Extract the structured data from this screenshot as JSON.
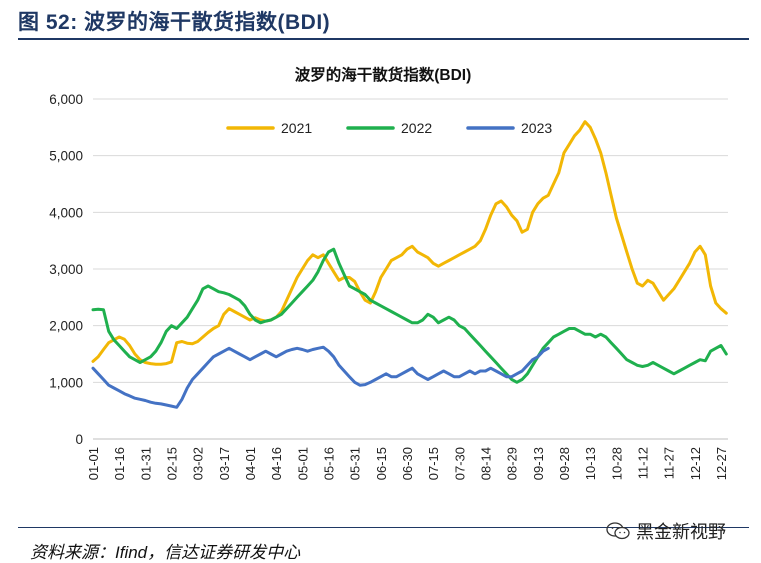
{
  "figure": {
    "title": "图 52:  波罗的海干散货指数(BDI)",
    "source": "资料来源：Ifind，信达证券研发中心",
    "watermark": "黑金新视野",
    "watermark_icon": "wechat-icon"
  },
  "chart_data": {
    "type": "line",
    "title": "波罗的海干散货指数(BDI)",
    "xlabel": "",
    "ylabel": "",
    "ylim": [
      0,
      6000
    ],
    "yticks": [
      "0",
      "1,000",
      "2,000",
      "3,000",
      "4,000",
      "5,000",
      "6,000"
    ],
    "ytick_values": [
      0,
      1000,
      2000,
      3000,
      4000,
      5000,
      6000
    ],
    "xticks": [
      "01-01",
      "01-16",
      "01-31",
      "02-15",
      "03-02",
      "03-17",
      "04-01",
      "04-16",
      "05-01",
      "05-16",
      "05-31",
      "06-15",
      "06-30",
      "07-15",
      "07-30",
      "08-14",
      "08-29",
      "09-13",
      "09-28",
      "10-13",
      "10-28",
      "11-12",
      "11-27",
      "12-12",
      "12-27"
    ],
    "xtick_days": [
      1,
      16,
      31,
      46,
      61,
      76,
      91,
      106,
      121,
      136,
      151,
      166,
      181,
      196,
      211,
      226,
      241,
      256,
      271,
      286,
      301,
      316,
      331,
      346,
      361
    ],
    "x_unit": "day of year",
    "xlim": [
      1,
      365
    ],
    "grid": true,
    "legend": "top-center",
    "series": [
      {
        "name": "2021",
        "color": "#f2b705",
        "x": [
          1,
          4,
          7,
          10,
          13,
          16,
          19,
          22,
          25,
          28,
          31,
          34,
          37,
          40,
          43,
          46,
          49,
          52,
          55,
          58,
          61,
          64,
          67,
          70,
          73,
          76,
          79,
          82,
          85,
          88,
          91,
          94,
          97,
          100,
          103,
          106,
          109,
          112,
          115,
          118,
          121,
          124,
          127,
          130,
          133,
          136,
          139,
          142,
          145,
          148,
          151,
          154,
          157,
          160,
          163,
          166,
          169,
          172,
          175,
          178,
          181,
          184,
          187,
          190,
          193,
          196,
          199,
          202,
          205,
          208,
          211,
          214,
          217,
          220,
          223,
          226,
          229,
          232,
          235,
          238,
          241,
          244,
          247,
          250,
          253,
          256,
          259,
          262,
          265,
          268,
          271,
          274,
          277,
          280,
          283,
          286,
          289,
          292,
          295,
          298,
          301,
          304,
          307,
          310,
          313,
          316,
          319,
          322,
          325,
          328,
          331,
          334,
          337,
          340,
          343,
          346,
          349,
          352,
          355,
          358,
          361,
          364
        ],
        "values": [
          1370,
          1450,
          1580,
          1700,
          1750,
          1800,
          1760,
          1650,
          1500,
          1400,
          1350,
          1330,
          1320,
          1320,
          1330,
          1360,
          1700,
          1720,
          1690,
          1680,
          1720,
          1800,
          1880,
          1950,
          2000,
          2200,
          2300,
          2250,
          2200,
          2150,
          2100,
          2140,
          2100,
          2080,
          2100,
          2150,
          2250,
          2450,
          2650,
          2850,
          3000,
          3150,
          3250,
          3200,
          3250,
          3100,
          2950,
          2800,
          2850,
          2850,
          2780,
          2600,
          2450,
          2400,
          2600,
          2850,
          3000,
          3150,
          3200,
          3250,
          3350,
          3400,
          3300,
          3250,
          3200,
          3100,
          3050,
          3100,
          3150,
          3200,
          3250,
          3300,
          3350,
          3400,
          3500,
          3700,
          3950,
          4150,
          4200,
          4100,
          3950,
          3850,
          3650,
          3700,
          4000,
          4150,
          4250,
          4300,
          4500,
          4700,
          5050,
          5200,
          5350,
          5450,
          5600,
          5500,
          5300,
          5050,
          4700,
          4300,
          3900,
          3600,
          3300,
          3000,
          2750,
          2700,
          2800,
          2750,
          2600,
          2450,
          2550,
          2650,
          2800,
          2950,
          3100,
          3300,
          3400,
          3250,
          2700,
          2400,
          2300,
          2220
        ]
      },
      {
        "name": "2022",
        "color": "#1fb04e",
        "x": [
          1,
          4,
          7,
          10,
          13,
          16,
          19,
          22,
          25,
          28,
          31,
          34,
          37,
          40,
          43,
          46,
          49,
          52,
          55,
          58,
          61,
          64,
          67,
          70,
          73,
          76,
          79,
          82,
          85,
          88,
          91,
          94,
          97,
          100,
          103,
          106,
          109,
          112,
          115,
          118,
          121,
          124,
          127,
          130,
          133,
          136,
          139,
          142,
          145,
          148,
          151,
          154,
          157,
          160,
          163,
          166,
          169,
          172,
          175,
          178,
          181,
          184,
          187,
          190,
          193,
          196,
          199,
          202,
          205,
          208,
          211,
          214,
          217,
          220,
          223,
          226,
          229,
          232,
          235,
          238,
          241,
          244,
          247,
          250,
          253,
          256,
          259,
          262,
          265,
          268,
          271,
          274,
          277,
          280,
          283,
          286,
          289,
          292,
          295,
          298,
          301,
          304,
          307,
          310,
          313,
          316,
          319,
          322,
          325,
          328,
          331,
          334,
          337,
          340,
          343,
          346,
          349,
          352,
          355,
          358,
          361,
          364
        ],
        "values": [
          2280,
          2290,
          2280,
          1900,
          1750,
          1650,
          1550,
          1450,
          1400,
          1350,
          1400,
          1450,
          1550,
          1700,
          1900,
          2000,
          1950,
          2050,
          2150,
          2300,
          2450,
          2650,
          2700,
          2650,
          2600,
          2580,
          2550,
          2500,
          2450,
          2350,
          2200,
          2100,
          2050,
          2080,
          2100,
          2150,
          2200,
          2300,
          2400,
          2500,
          2600,
          2700,
          2800,
          2950,
          3150,
          3300,
          3350,
          3100,
          2900,
          2700,
          2650,
          2600,
          2550,
          2450,
          2400,
          2350,
          2300,
          2250,
          2200,
          2150,
          2100,
          2050,
          2050,
          2100,
          2200,
          2150,
          2050,
          2100,
          2150,
          2100,
          2000,
          1950,
          1850,
          1750,
          1650,
          1550,
          1450,
          1350,
          1250,
          1150,
          1050,
          1000,
          1050,
          1150,
          1300,
          1450,
          1600,
          1700,
          1800,
          1850,
          1900,
          1950,
          1950,
          1900,
          1850,
          1850,
          1800,
          1850,
          1800,
          1700,
          1600,
          1500,
          1400,
          1350,
          1300,
          1280,
          1300,
          1350,
          1300,
          1250,
          1200,
          1150,
          1200,
          1250,
          1300,
          1350,
          1400,
          1380,
          1550,
          1600,
          1650,
          1500
        ]
      },
      {
        "name": "2023",
        "color": "#4472c4",
        "x": [
          1,
          4,
          7,
          10,
          13,
          16,
          19,
          22,
          25,
          28,
          31,
          34,
          37,
          40,
          43,
          46,
          49,
          52,
          55,
          58,
          61,
          64,
          67,
          70,
          73,
          76,
          79,
          82,
          85,
          88,
          91,
          94,
          97,
          100,
          103,
          106,
          109,
          112,
          115,
          118,
          121,
          124,
          127,
          130,
          133,
          136,
          139,
          142,
          145,
          148,
          151,
          154,
          157,
          160,
          163,
          166,
          169,
          172,
          175,
          178,
          181,
          184,
          187,
          190,
          193,
          196,
          199,
          202,
          205,
          208,
          211,
          214,
          217,
          220,
          223,
          226,
          229,
          232,
          235,
          238,
          241,
          244,
          247,
          250,
          253,
          256,
          259,
          262
        ],
        "values": [
          1250,
          1150,
          1050,
          950,
          900,
          850,
          800,
          760,
          720,
          700,
          680,
          650,
          630,
          620,
          600,
          580,
          560,
          700,
          900,
          1050,
          1150,
          1250,
          1350,
          1450,
          1500,
          1550,
          1600,
          1550,
          1500,
          1450,
          1400,
          1450,
          1500,
          1550,
          1500,
          1450,
          1500,
          1550,
          1580,
          1600,
          1580,
          1550,
          1580,
          1600,
          1620,
          1550,
          1450,
          1300,
          1200,
          1100,
          1000,
          950,
          960,
          1000,
          1050,
          1100,
          1150,
          1100,
          1100,
          1150,
          1200,
          1250,
          1150,
          1100,
          1050,
          1100,
          1150,
          1200,
          1150,
          1100,
          1100,
          1150,
          1200,
          1150,
          1200,
          1200,
          1250,
          1200,
          1150,
          1100,
          1100,
          1150,
          1200,
          1300,
          1400,
          1450,
          1550,
          1600
        ]
      }
    ]
  }
}
